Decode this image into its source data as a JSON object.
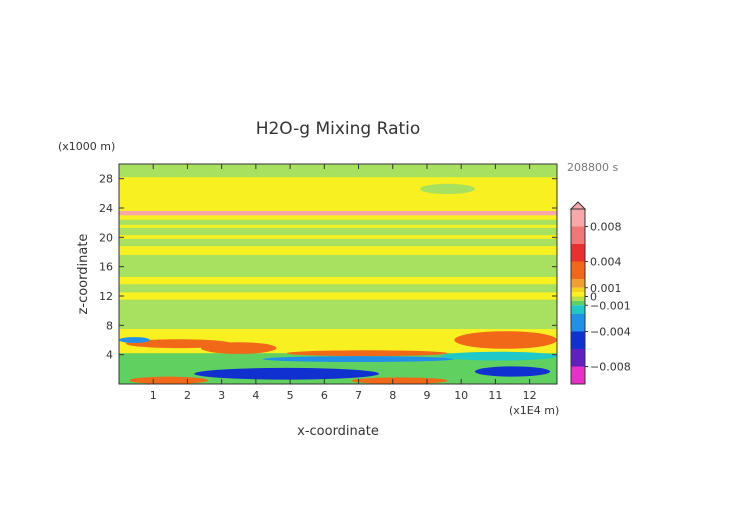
{
  "chart_data": {
    "type": "heatmap",
    "title": "H2O-g Mixing Ratio",
    "xlabel": "x-coordinate",
    "ylabel": "z-coordinate",
    "x_unit": "(x1E4 m)",
    "y_unit": "(x1000 m)",
    "time_label": "208800 s",
    "xlim": [
      0,
      12.8
    ],
    "ylim": [
      0,
      30
    ],
    "x_ticks": [
      1,
      2,
      3,
      4,
      5,
      6,
      7,
      8,
      9,
      10,
      11,
      12
    ],
    "y_ticks": [
      4,
      8,
      12,
      16,
      20,
      24,
      28
    ],
    "colorbar": {
      "range": [
        -0.01,
        0.01
      ],
      "tick_values": [
        0.008,
        0.004,
        0.001,
        0,
        -0.001,
        -0.004,
        -0.008
      ],
      "tick_labels": [
        "0.008",
        "0.004",
        "0.001",
        "0",
        "−0.001",
        "−0.004",
        "−0.008"
      ],
      "colors": [
        {
          "from": 0.008,
          "to": 0.01,
          "color": "#f8a8a8"
        },
        {
          "from": 0.006,
          "to": 0.008,
          "color": "#f07878"
        },
        {
          "from": 0.004,
          "to": 0.006,
          "color": "#e83030"
        },
        {
          "from": 0.002,
          "to": 0.004,
          "color": "#f06818"
        },
        {
          "from": 0.001,
          "to": 0.002,
          "color": "#f0a030"
        },
        {
          "from": 0.0005,
          "to": 0.001,
          "color": "#f8d020"
        },
        {
          "from": 0,
          "to": 0.0005,
          "color": "#f8f020"
        },
        {
          "from": -0.0005,
          "to": 0,
          "color": "#b8e040"
        },
        {
          "from": -0.001,
          "to": -0.0005,
          "color": "#60d060"
        },
        {
          "from": -0.002,
          "to": -0.001,
          "color": "#20c8c8"
        },
        {
          "from": -0.004,
          "to": -0.002,
          "color": "#2090e8"
        },
        {
          "from": -0.006,
          "to": -0.004,
          "color": "#1030d0"
        },
        {
          "from": -0.008,
          "to": -0.006,
          "color": "#6020c0"
        },
        {
          "from": -0.01,
          "to": -0.008,
          "color": "#e830c8"
        }
      ]
    },
    "field": {
      "background": {
        "value": 0.0002,
        "color": "#f8f020"
      },
      "regions": [
        {
          "kind": "band",
          "x": [
            0,
            12.8
          ],
          "z": [
            28.2,
            30
          ],
          "value": -0.0003,
          "color": "#a8e060"
        },
        {
          "kind": "band",
          "x": [
            0,
            12.8
          ],
          "z": [
            23,
            23.6
          ],
          "value": 0.009,
          "color": "#f8a8a8"
        },
        {
          "kind": "band",
          "x": [
            0,
            12.8
          ],
          "z": [
            21.7,
            22.4
          ],
          "value": -0.0003,
          "color": "#a8e060"
        },
        {
          "kind": "band",
          "x": [
            0,
            12.8
          ],
          "z": [
            20.3,
            21.3
          ],
          "value": -0.0003,
          "color": "#a8e060"
        },
        {
          "kind": "band",
          "x": [
            0,
            12.8
          ],
          "z": [
            18.8,
            19.8
          ],
          "value": -0.0003,
          "color": "#a8e060"
        },
        {
          "kind": "band",
          "x": [
            0,
            12.8
          ],
          "z": [
            14.6,
            17.6
          ],
          "value": -0.0003,
          "color": "#a8e060"
        },
        {
          "kind": "band",
          "x": [
            0,
            12.8
          ],
          "z": [
            12.5,
            13.6
          ],
          "value": -0.0003,
          "color": "#a8e060"
        },
        {
          "kind": "band",
          "x": [
            0,
            12.8
          ],
          "z": [
            7.5,
            11.5
          ],
          "value": -0.0003,
          "color": "#a8e060"
        },
        {
          "kind": "band",
          "x": [
            0,
            12.8
          ],
          "z": [
            0,
            4.2
          ],
          "value": -0.0008,
          "color": "#60d060"
        },
        {
          "kind": "blob",
          "x": [
            8.8,
            10.4
          ],
          "z": [
            25.9,
            27.3
          ],
          "value": -0.0003,
          "color": "#a8e060"
        },
        {
          "kind": "blob",
          "x": [
            9.8,
            12.8
          ],
          "z": [
            4.8,
            7.2
          ],
          "value": 0.003,
          "color": "#f06818"
        },
        {
          "kind": "blob",
          "x": [
            0.2,
            3.3
          ],
          "z": [
            4.9,
            6.1
          ],
          "value": 0.003,
          "color": "#f06818"
        },
        {
          "kind": "blob",
          "x": [
            2.4,
            4.6
          ],
          "z": [
            4.1,
            5.7
          ],
          "value": 0.003,
          "color": "#f06818"
        },
        {
          "kind": "blob",
          "x": [
            4.9,
            9.6
          ],
          "z": [
            3.8,
            4.6
          ],
          "value": 0.003,
          "color": "#f06818"
        },
        {
          "kind": "blob",
          "x": [
            4.2,
            9.8
          ],
          "z": [
            3.0,
            3.8
          ],
          "value": -0.003,
          "color": "#2090e8"
        },
        {
          "kind": "blob",
          "x": [
            9.4,
            12.8
          ],
          "z": [
            3.2,
            4.4
          ],
          "value": -0.0015,
          "color": "#20c8c8"
        },
        {
          "kind": "blob",
          "x": [
            2.2,
            7.6
          ],
          "z": [
            0.6,
            2.2
          ],
          "value": -0.004,
          "color": "#1030d0"
        },
        {
          "kind": "blob",
          "x": [
            10.4,
            12.6
          ],
          "z": [
            1.0,
            2.4
          ],
          "value": -0.004,
          "color": "#1030d0"
        },
        {
          "kind": "blob",
          "x": [
            0.3,
            2.6
          ],
          "z": [
            0.0,
            1.0
          ],
          "value": 0.003,
          "color": "#f06818"
        },
        {
          "kind": "blob",
          "x": [
            6.8,
            9.6
          ],
          "z": [
            0.0,
            0.9
          ],
          "value": 0.003,
          "color": "#f06818"
        },
        {
          "kind": "blob",
          "x": [
            0.0,
            0.9
          ],
          "z": [
            5.6,
            6.4
          ],
          "value": -0.003,
          "color": "#2090e8"
        }
      ]
    }
  }
}
